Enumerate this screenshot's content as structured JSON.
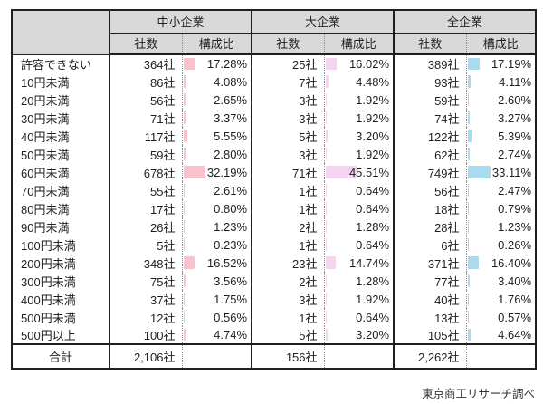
{
  "page": {
    "background": "#ffffff",
    "header_bg": "#d9d9d9",
    "source_note": "東京商工リサーチ調べ"
  },
  "table": {
    "header_groups": [
      {
        "id": "sme",
        "label": "中小企業",
        "bar_color": "#f8c3cd"
      },
      {
        "id": "large",
        "label": "大企業",
        "bar_color": "#f4d4ee"
      },
      {
        "id": "all",
        "label": "全企業",
        "bar_color": "#a9daf0"
      }
    ],
    "subheader": {
      "count": "社数",
      "ratio": "構成比"
    },
    "rows": [
      {
        "label": "許容できない",
        "cells": [
          {
            "count": "364社",
            "ratio": "17.28%",
            "pct": 17.28
          },
          {
            "count": "25社",
            "ratio": "16.02%",
            "pct": 16.02
          },
          {
            "count": "389社",
            "ratio": "17.19%",
            "pct": 17.19
          }
        ]
      },
      {
        "label": "10円未満",
        "cells": [
          {
            "count": "86社",
            "ratio": "4.08%",
            "pct": 4.08
          },
          {
            "count": "7社",
            "ratio": "4.48%",
            "pct": 4.48
          },
          {
            "count": "93社",
            "ratio": "4.11%",
            "pct": 4.11
          }
        ]
      },
      {
        "label": "20円未満",
        "cells": [
          {
            "count": "56社",
            "ratio": "2.65%",
            "pct": 2.65
          },
          {
            "count": "3社",
            "ratio": "1.92%",
            "pct": 1.92
          },
          {
            "count": "59社",
            "ratio": "2.60%",
            "pct": 2.6
          }
        ]
      },
      {
        "label": "30円未満",
        "cells": [
          {
            "count": "71社",
            "ratio": "3.37%",
            "pct": 3.37
          },
          {
            "count": "3社",
            "ratio": "1.92%",
            "pct": 1.92
          },
          {
            "count": "74社",
            "ratio": "3.27%",
            "pct": 3.27
          }
        ]
      },
      {
        "label": "40円未満",
        "cells": [
          {
            "count": "117社",
            "ratio": "5.55%",
            "pct": 5.55
          },
          {
            "count": "5社",
            "ratio": "3.20%",
            "pct": 3.2
          },
          {
            "count": "122社",
            "ratio": "5.39%",
            "pct": 5.39
          }
        ]
      },
      {
        "label": "50円未満",
        "cells": [
          {
            "count": "59社",
            "ratio": "2.80%",
            "pct": 2.8
          },
          {
            "count": "3社",
            "ratio": "1.92%",
            "pct": 1.92
          },
          {
            "count": "62社",
            "ratio": "2.74%",
            "pct": 2.74
          }
        ]
      },
      {
        "label": "60円未満",
        "cells": [
          {
            "count": "678社",
            "ratio": "32.19%",
            "pct": 32.19
          },
          {
            "count": "71社",
            "ratio": "45.51%",
            "pct": 45.51
          },
          {
            "count": "749社",
            "ratio": "33.11%",
            "pct": 33.11
          }
        ]
      },
      {
        "label": "70円未満",
        "cells": [
          {
            "count": "55社",
            "ratio": "2.61%",
            "pct": 2.61
          },
          {
            "count": "1社",
            "ratio": "0.64%",
            "pct": 0.64
          },
          {
            "count": "56社",
            "ratio": "2.47%",
            "pct": 2.47
          }
        ]
      },
      {
        "label": "80円未満",
        "cells": [
          {
            "count": "17社",
            "ratio": "0.80%",
            "pct": 0.8
          },
          {
            "count": "1社",
            "ratio": "0.64%",
            "pct": 0.64
          },
          {
            "count": "18社",
            "ratio": "0.79%",
            "pct": 0.79
          }
        ]
      },
      {
        "label": "90円未満",
        "cells": [
          {
            "count": "26社",
            "ratio": "1.23%",
            "pct": 1.23
          },
          {
            "count": "2社",
            "ratio": "1.28%",
            "pct": 1.28
          },
          {
            "count": "28社",
            "ratio": "1.23%",
            "pct": 1.23
          }
        ]
      },
      {
        "label": "100円未満",
        "cells": [
          {
            "count": "5社",
            "ratio": "0.23%",
            "pct": 0.23
          },
          {
            "count": "1社",
            "ratio": "0.64%",
            "pct": 0.64
          },
          {
            "count": "6社",
            "ratio": "0.26%",
            "pct": 0.26
          }
        ]
      },
      {
        "label": "200円未満",
        "cells": [
          {
            "count": "348社",
            "ratio": "16.52%",
            "pct": 16.52
          },
          {
            "count": "23社",
            "ratio": "14.74%",
            "pct": 14.74
          },
          {
            "count": "371社",
            "ratio": "16.40%",
            "pct": 16.4
          }
        ]
      },
      {
        "label": "300円未満",
        "cells": [
          {
            "count": "75社",
            "ratio": "3.56%",
            "pct": 3.56
          },
          {
            "count": "2社",
            "ratio": "1.28%",
            "pct": 1.28
          },
          {
            "count": "77社",
            "ratio": "3.40%",
            "pct": 3.4
          }
        ]
      },
      {
        "label": "400円未満",
        "cells": [
          {
            "count": "37社",
            "ratio": "1.75%",
            "pct": 1.75
          },
          {
            "count": "3社",
            "ratio": "1.92%",
            "pct": 1.92
          },
          {
            "count": "40社",
            "ratio": "1.76%",
            "pct": 1.76
          }
        ]
      },
      {
        "label": "500円未満",
        "cells": [
          {
            "count": "12社",
            "ratio": "0.56%",
            "pct": 0.56
          },
          {
            "count": "1社",
            "ratio": "0.64%",
            "pct": 0.64
          },
          {
            "count": "13社",
            "ratio": "0.57%",
            "pct": 0.57
          }
        ]
      },
      {
        "label": "500円以上",
        "cells": [
          {
            "count": "100社",
            "ratio": "4.74%",
            "pct": 4.74
          },
          {
            "count": "5社",
            "ratio": "3.20%",
            "pct": 3.2
          },
          {
            "count": "105社",
            "ratio": "4.64%",
            "pct": 4.64
          }
        ]
      }
    ],
    "total_row": {
      "label": "合計",
      "counts": [
        "2,106社",
        "156社",
        "2,262社"
      ]
    }
  },
  "chart_data": {
    "type": "table",
    "title": "",
    "row_labels": [
      "許容できない",
      "10円未満",
      "20円未満",
      "30円未満",
      "40円未満",
      "50円未満",
      "60円未満",
      "70円未満",
      "80円未満",
      "90円未満",
      "100円未満",
      "200円未満",
      "300円未満",
      "400円未満",
      "500円未満",
      "500円以上"
    ],
    "column_groups": [
      "中小企業",
      "大企業",
      "全企業"
    ],
    "sub_columns": [
      "社数",
      "構成比"
    ],
    "series": [
      {
        "name": "中小企業",
        "counts": [
          364,
          86,
          56,
          71,
          117,
          59,
          678,
          55,
          17,
          26,
          5,
          348,
          75,
          37,
          12,
          100
        ],
        "ratios_pct": [
          17.28,
          4.08,
          2.65,
          3.37,
          5.55,
          2.8,
          32.19,
          2.61,
          0.8,
          1.23,
          0.23,
          16.52,
          3.56,
          1.75,
          0.56,
          4.74
        ],
        "total_count": 2106,
        "bar_color": "#f8c3cd"
      },
      {
        "name": "大企業",
        "counts": [
          25,
          7,
          3,
          3,
          5,
          3,
          71,
          1,
          1,
          2,
          1,
          23,
          2,
          3,
          1,
          5
        ],
        "ratios_pct": [
          16.02,
          4.48,
          1.92,
          1.92,
          3.2,
          1.92,
          45.51,
          0.64,
          0.64,
          1.28,
          0.64,
          14.74,
          1.28,
          1.92,
          0.64,
          3.2
        ],
        "total_count": 156,
        "bar_color": "#f4d4ee"
      },
      {
        "name": "全企業",
        "counts": [
          389,
          93,
          59,
          74,
          122,
          62,
          749,
          56,
          18,
          28,
          6,
          371,
          77,
          40,
          13,
          105
        ],
        "ratios_pct": [
          17.19,
          4.11,
          2.6,
          3.27,
          5.39,
          2.74,
          33.11,
          2.47,
          0.79,
          1.23,
          0.26,
          16.4,
          3.4,
          1.76,
          0.57,
          4.64
        ],
        "total_count": 2262,
        "bar_color": "#a9daf0"
      }
    ],
    "bar_scale": "data bar width = percent of 100% of cell width",
    "legend_position": "none",
    "source": "東京商工リサーチ調べ"
  }
}
